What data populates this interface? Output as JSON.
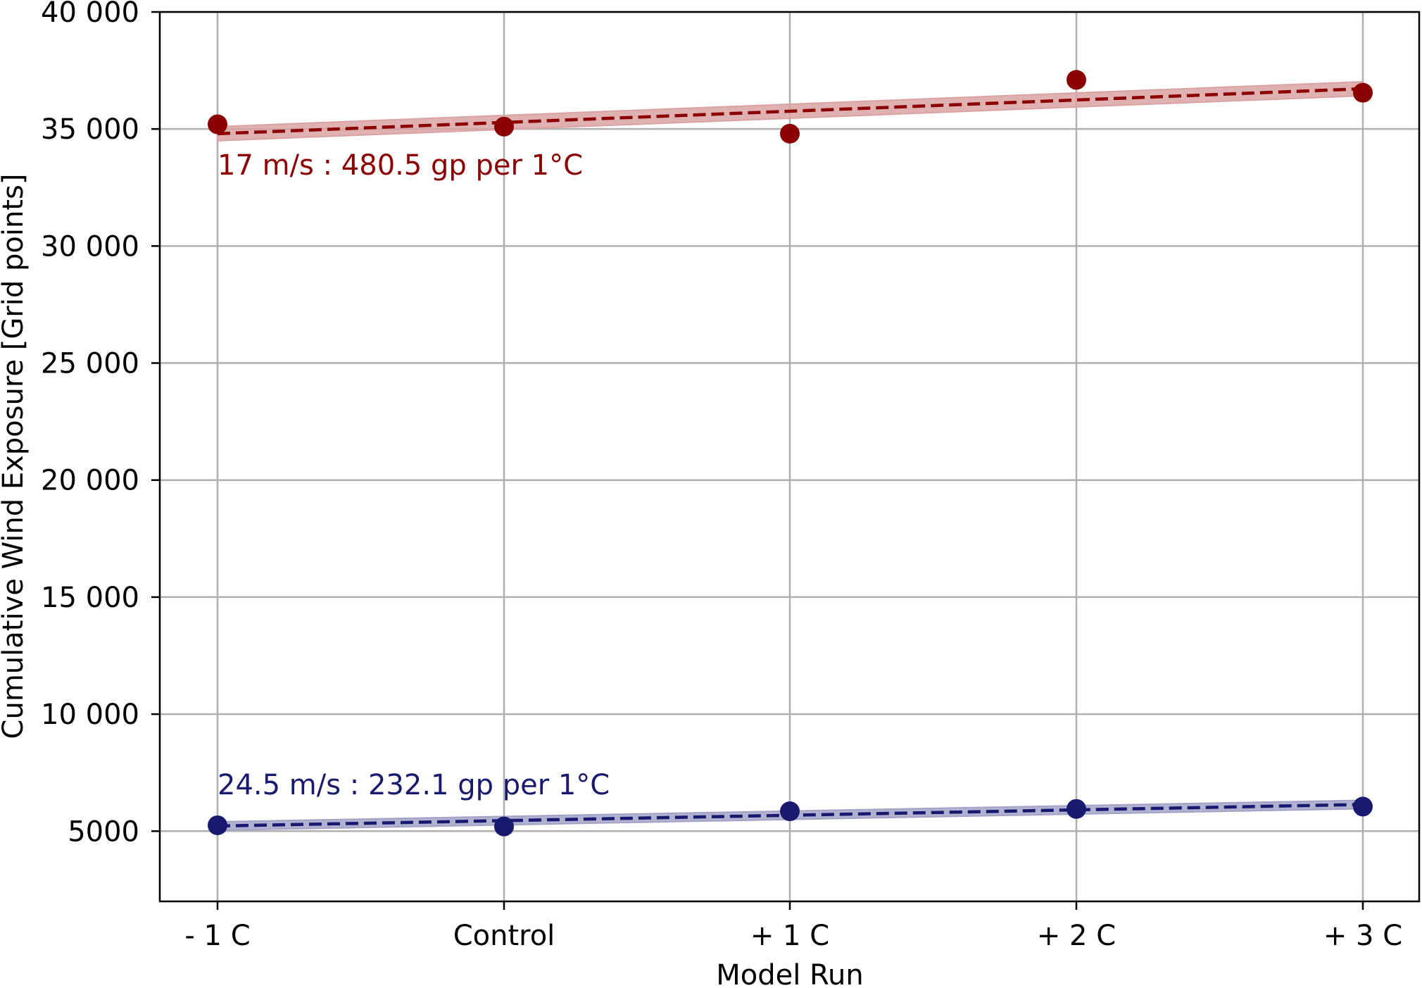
{
  "chart_data": {
    "type": "scatter",
    "title": "",
    "xlabel": "Model Run",
    "ylabel": "Cumulative Wind Exposure [Grid points]",
    "categories": [
      "- 1 C",
      "Control",
      "+ 1 C",
      "+ 2 C",
      "+ 3 C"
    ],
    "ylim": [
      2000,
      40000
    ],
    "yticks": [
      5000,
      10000,
      15000,
      20000,
      25000,
      30000,
      35000,
      40000
    ],
    "ytick_labels": [
      "5000",
      "10 000",
      "15 000",
      "20 000",
      "25 000",
      "30 000",
      "35 000",
      "40 000"
    ],
    "grid": true,
    "series": [
      {
        "color": "#8b0000",
        "band_color": "#d9a3a3",
        "values": [
          35200,
          35100,
          34800,
          37100,
          36550
        ],
        "fit": [
          34800,
          35280,
          35760,
          36240,
          36720
        ],
        "annotation": "17 m/s : 480.5 gp per 1°C"
      },
      {
        "color": "#191970",
        "band_color": "#a3a3c8",
        "values": [
          5250,
          5200,
          5850,
          5950,
          6050
        ],
        "fit": [
          5220,
          5450,
          5680,
          5910,
          6140
        ],
        "annotation": "24.5 m/s : 232.1 gp per 1°C"
      }
    ]
  }
}
